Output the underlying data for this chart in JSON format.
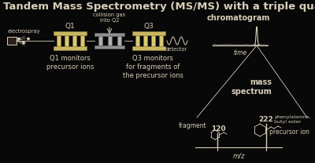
{
  "title": "Tandem Mass Spectrometry (MS/MS) with a triple quadrupole",
  "bg_color": "#080808",
  "text_color": "#d8cdb8",
  "title_fontsize": 9.5,
  "labels": {
    "electrospray": "electrospray",
    "Q1": "Q1",
    "Q2_label": "collision gas\ninto Q2",
    "Q3": "Q3",
    "detector": "detector",
    "chromatogram": "chromatogram",
    "time": "time",
    "mass_spectrum": "mass\nspectrum",
    "q1_desc": "Q1 monitors\nprecursor ions",
    "q3_desc": "Q3 monitors\nfor fragments of\nthe precursor ions",
    "fragment": "fragment",
    "fragment_mz": "120",
    "precursor_ion": "precursor ion",
    "precursor_mz": "222",
    "mz_label": "m/z",
    "phenylalanine": "phenylalanine,\nbutyl ester"
  },
  "fig_w": 4.0,
  "fig_h": 2.08,
  "dpi": 100
}
